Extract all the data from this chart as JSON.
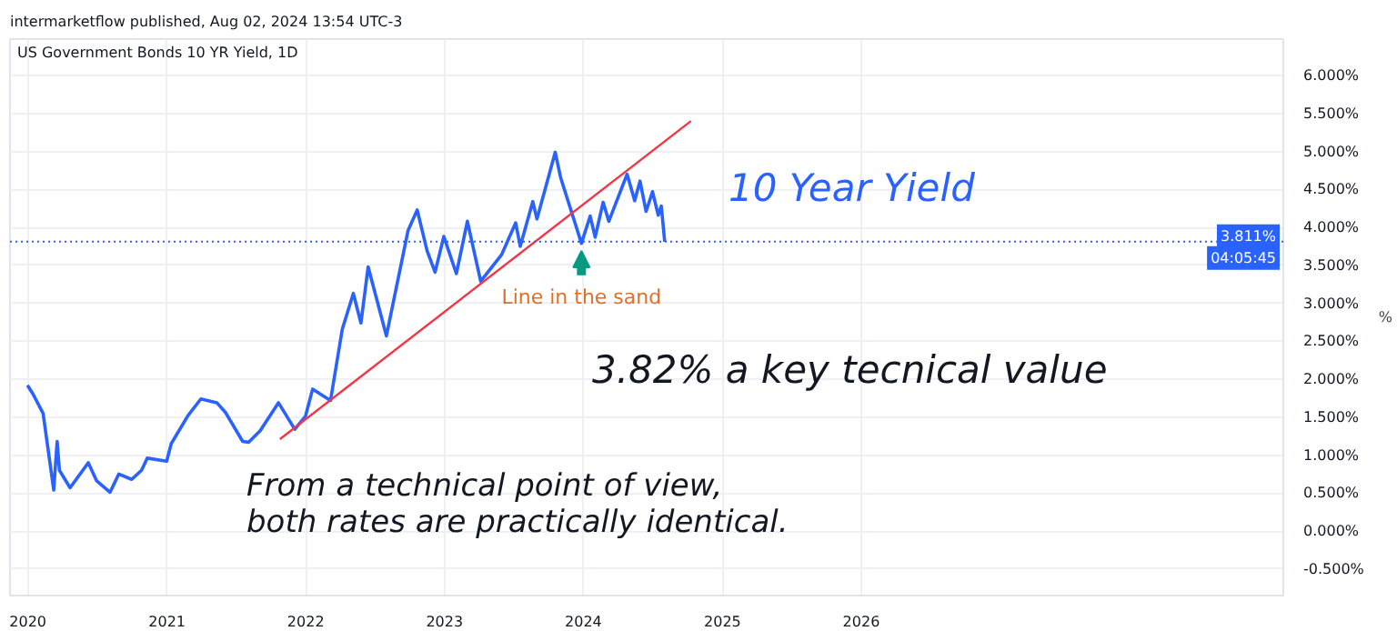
{
  "chart_data": {
    "type": "line",
    "title": "US Government Bonds 10 YR Yield, 1D",
    "ylabel": "%",
    "x": [
      "2019-12-31",
      "2020-01-15",
      "2020-02-10",
      "2020-03-09",
      "2020-03-18",
      "2020-03-24",
      "2020-04-21",
      "2020-06-08",
      "2020-06-30",
      "2020-08-04",
      "2020-08-27",
      "2020-09-30",
      "2020-10-26",
      "2020-11-10",
      "2020-12-31",
      "2021-01-12",
      "2021-02-25",
      "2021-03-31",
      "2021-05-12",
      "2021-06-04",
      "2021-07-19",
      "2021-08-04",
      "2021-09-03",
      "2021-10-21",
      "2021-12-03",
      "2021-12-31",
      "2022-01-19",
      "2022-03-07",
      "2022-04-07",
      "2022-05-06",
      "2022-05-26",
      "2022-06-14",
      "2022-08-01",
      "2022-09-27",
      "2022-10-21",
      "2022-11-16",
      "2022-12-07",
      "2022-12-30",
      "2023-02-01",
      "2023-03-02",
      "2023-04-06",
      "2023-05-31",
      "2023-07-07",
      "2023-07-19",
      "2023-08-21",
      "2023-09-01",
      "2023-10-19",
      "2023-11-02",
      "2023-12-27",
      "2024-01-19",
      "2024-02-01",
      "2024-02-22",
      "2024-03-08",
      "2024-04-25",
      "2024-05-15",
      "2024-05-29",
      "2024-06-14",
      "2024-07-01",
      "2024-07-16",
      "2024-07-24",
      "2024-08-02"
    ],
    "series": [
      {
        "color": "#2962ff",
        "values": [
          1.92,
          1.8,
          1.55,
          0.54,
          1.18,
          0.8,
          0.57,
          0.9,
          0.66,
          0.51,
          0.75,
          0.68,
          0.8,
          0.96,
          0.92,
          1.15,
          1.52,
          1.74,
          1.69,
          1.56,
          1.18,
          1.17,
          1.32,
          1.69,
          1.34,
          1.51,
          1.87,
          1.72,
          2.66,
          3.13,
          2.74,
          3.48,
          2.57,
          3.96,
          4.23,
          3.69,
          3.41,
          3.88,
          3.39,
          4.08,
          3.29,
          3.64,
          4.06,
          3.75,
          4.34,
          4.11,
          4.99,
          4.66,
          3.79,
          4.15,
          3.87,
          4.33,
          4.08,
          4.7,
          4.35,
          4.61,
          4.21,
          4.47,
          4.16,
          4.28,
          3.81
        ]
      },
      {
        "type": "line",
        "color": "#f23645",
        "x": [
          "2021-10-25",
          "2024-10-10"
        ],
        "values": [
          1.21,
          5.4
        ]
      }
    ],
    "xlim": [
      "2019-11-15",
      "2029-01-15"
    ],
    "xticks": [
      {
        "value": "2020-01-01",
        "label": "2020"
      },
      {
        "value": "2021-01-01",
        "label": "2021"
      },
      {
        "value": "2022-01-01",
        "label": "2022"
      },
      {
        "value": "2023-01-01",
        "label": "2023"
      },
      {
        "value": "2024-01-01",
        "label": "2024"
      },
      {
        "value": "2025-01-01",
        "label": "2025"
      },
      {
        "value": "2026-01-01",
        "label": "2026"
      }
    ],
    "ylim": [
      -0.85,
      6.48
    ],
    "yticks": [
      {
        "value": 6,
        "label": "6.000%"
      },
      {
        "value": 5.5,
        "label": "5.500%"
      },
      {
        "value": 5,
        "label": "5.000%"
      },
      {
        "value": 4.5,
        "label": "4.500%"
      },
      {
        "value": 4,
        "label": "4.000%"
      },
      {
        "value": 3.5,
        "label": "3.500%"
      },
      {
        "value": 3,
        "label": "3.000%"
      },
      {
        "value": 2.5,
        "label": "2.500%"
      },
      {
        "value": 2,
        "label": "2.000%"
      },
      {
        "value": 1.5,
        "label": "1.500%"
      },
      {
        "value": 1,
        "label": "1.000%"
      },
      {
        "value": 0.5,
        "label": "0.500%"
      },
      {
        "value": 0,
        "label": "0.000%"
      },
      {
        "value": -0.5,
        "label": "-0.500%"
      }
    ],
    "ref_lines": [
      {
        "axis": "y",
        "value": 3.811,
        "label": "3.811%",
        "color": "#2962ff",
        "line_style": "dotted"
      }
    ],
    "annotations": [
      "intermarketflow published, Aug 02, 2024 13:54 UTC-3",
      {
        "text": "Line in the sand",
        "x": "2023-12-27",
        "y": 3.79
      },
      "3.82% a key tecnical value",
      "From a technical point of view,\nboth rates are practically identical.",
      "04:05:45",
      "10 Year Yield"
    ],
    "grid": true,
    "marker": "none",
    "line_style": "solid"
  }
}
